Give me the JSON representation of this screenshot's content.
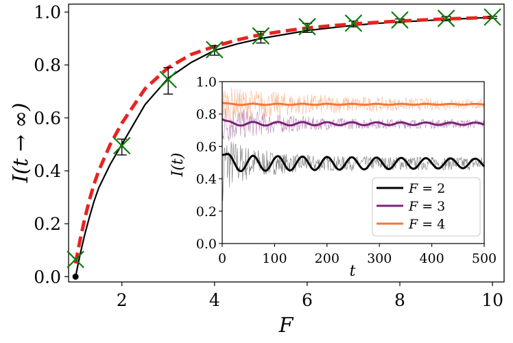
{
  "chart_data": [
    {
      "type": "line",
      "xlabel": "F",
      "ylabel": "I(t → ∞)",
      "xlim": [
        0.85,
        10.25
      ],
      "ylim": [
        -0.02,
        1.03
      ],
      "xticks": [
        2,
        4,
        6,
        8,
        10
      ],
      "yticks": [
        0.0,
        0.2,
        0.4,
        0.6,
        0.8,
        1.0
      ],
      "grid": false,
      "series": [
        {
          "kind": "solid-curve",
          "color": "#000000",
          "x": [
            1.0,
            1.1,
            1.2,
            1.3,
            1.4,
            1.5,
            1.75,
            2.0,
            2.5,
            3.0,
            3.5,
            4.0,
            4.5,
            5.0,
            5.5,
            6.0,
            6.5,
            7.0,
            7.5,
            8.0,
            8.5,
            9.0,
            9.5,
            10.0
          ],
          "y": [
            0.0,
            0.085,
            0.16,
            0.225,
            0.285,
            0.335,
            0.425,
            0.5,
            0.65,
            0.75,
            0.81,
            0.855,
            0.88,
            0.9,
            0.915,
            0.93,
            0.94,
            0.95,
            0.957,
            0.963,
            0.967,
            0.972,
            0.976,
            0.98
          ]
        },
        {
          "kind": "dashed-curve",
          "color": "#e8231f",
          "x": [
            1.0,
            1.1,
            1.2,
            1.3,
            1.4,
            1.5,
            1.75,
            2.0,
            2.5,
            3.0,
            3.5,
            4.0,
            4.5,
            5.0,
            5.5,
            6.0,
            6.5,
            7.0,
            7.5,
            8.0,
            8.5,
            9.0,
            9.5,
            10.0
          ],
          "y": [
            0.05,
            0.14,
            0.22,
            0.29,
            0.35,
            0.4,
            0.5,
            0.58,
            0.71,
            0.79,
            0.84,
            0.87,
            0.895,
            0.915,
            0.928,
            0.94,
            0.948,
            0.955,
            0.961,
            0.966,
            0.97,
            0.974,
            0.977,
            0.98
          ]
        },
        {
          "kind": "error-bars",
          "color": "#000000",
          "x": [
            2,
            3,
            4,
            5,
            6,
            7,
            8,
            9,
            10
          ],
          "y": [
            0.49,
            0.74,
            0.855,
            0.905,
            0.94,
            0.955,
            0.967,
            0.975,
            0.98
          ],
          "err": [
            0.03,
            0.05,
            0.018,
            0.022,
            0.017,
            0.011,
            0.007,
            0.008,
            0.004
          ]
        },
        {
          "kind": "x-markers",
          "color": "#0a7d0a",
          "x": [
            1,
            2,
            3,
            4,
            5,
            6,
            7,
            8,
            9,
            10
          ],
          "y": [
            0.065,
            0.495,
            0.745,
            0.858,
            0.91,
            0.945,
            0.958,
            0.97,
            0.976,
            0.981
          ]
        },
        {
          "kind": "point",
          "color": "#000000",
          "x": [
            1
          ],
          "y": [
            0.0
          ]
        }
      ]
    },
    {
      "type": "line",
      "inset": true,
      "xlabel": "t",
      "ylabel": "I(t)",
      "xlim": [
        0,
        500
      ],
      "ylim": [
        0.0,
        1.0
      ],
      "xticks": [
        0,
        100,
        200,
        300,
        400,
        500
      ],
      "yticks": [
        0.0,
        0.2,
        0.4,
        0.6,
        0.8,
        1.0
      ],
      "legend": "bottom-right",
      "series": [
        {
          "name": "F = 2",
          "label_var": "F",
          "label_eq": "= 2",
          "color": "#000000",
          "mean": 0.495,
          "start": 0.55,
          "osc_amp": 0.05,
          "noise_amp": 0.12,
          "noise_decay": 60
        },
        {
          "name": "F = 3",
          "label_var": "F",
          "label_eq": "= 3",
          "color": "#7b2278",
          "mean": 0.74,
          "start": 0.77,
          "osc_amp": 0.012,
          "noise_amp": 0.08,
          "noise_decay": 90
        },
        {
          "name": "F = 4",
          "label_var": "F",
          "label_eq": "= 4",
          "color": "#f07838",
          "mean": 0.86,
          "start": 0.87,
          "osc_amp": 0.004,
          "noise_amp": 0.07,
          "noise_decay": 200
        }
      ]
    }
  ]
}
